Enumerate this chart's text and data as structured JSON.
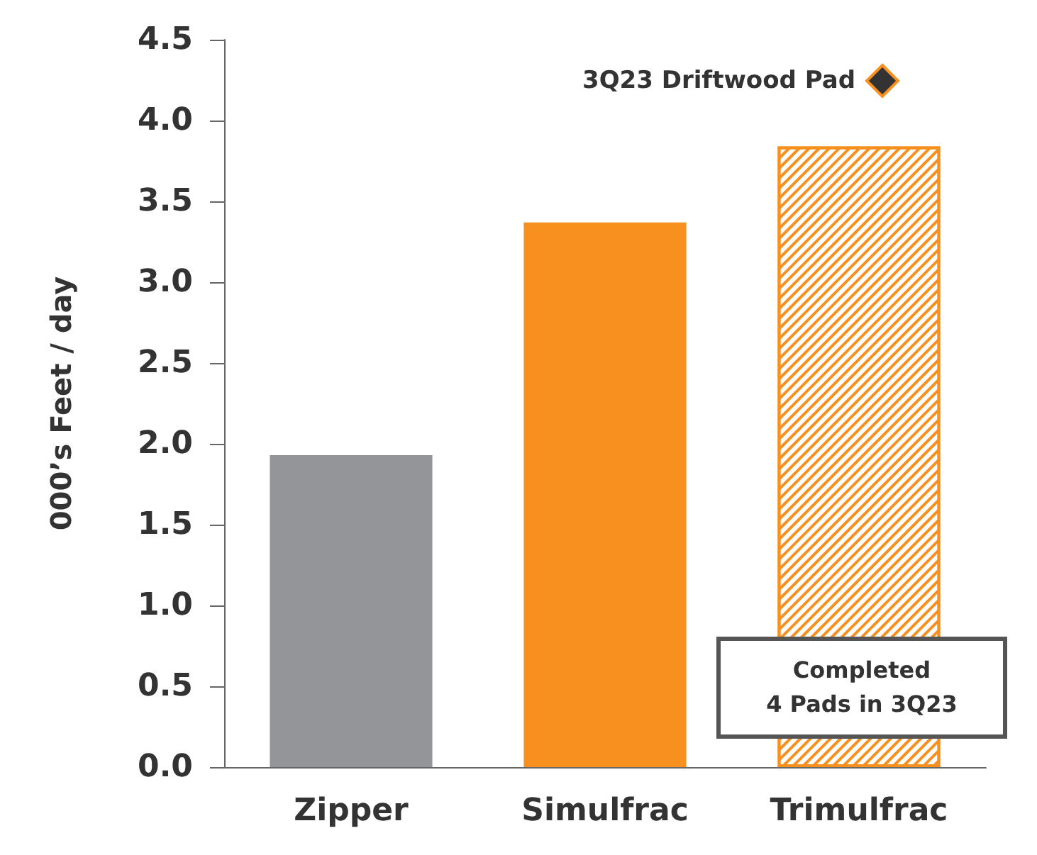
{
  "chart_data": {
    "type": "bar",
    "ylabel": "000’s Feet / day",
    "categories": [
      "Zipper",
      "Simulfrac",
      "Trimulfrac"
    ],
    "values": [
      1.93,
      3.37,
      3.84
    ],
    "colors": [
      "#939598",
      "#f7901e",
      "#f7901e"
    ],
    "ylim": [
      0,
      4.5
    ],
    "yticks": [
      {
        "value": 0,
        "label": "0.0"
      },
      {
        "value": 0.5,
        "label": "0.5"
      },
      {
        "value": 1,
        "label": "1.0"
      },
      {
        "value": 1.5,
        "label": "1.5"
      },
      {
        "value": 2,
        "label": "2.0"
      },
      {
        "value": 2.5,
        "label": "2.5"
      },
      {
        "value": 3,
        "label": "3.0"
      },
      {
        "value": 3.5,
        "label": "3.5"
      },
      {
        "value": 4,
        "label": "4.0"
      },
      {
        "value": 4.5,
        "label": "4.5"
      }
    ],
    "grid": false,
    "annotations": [
      "3Q23 Driftwood Pad",
      "Completed\n4 Pads in 3Q23"
    ]
  }
}
